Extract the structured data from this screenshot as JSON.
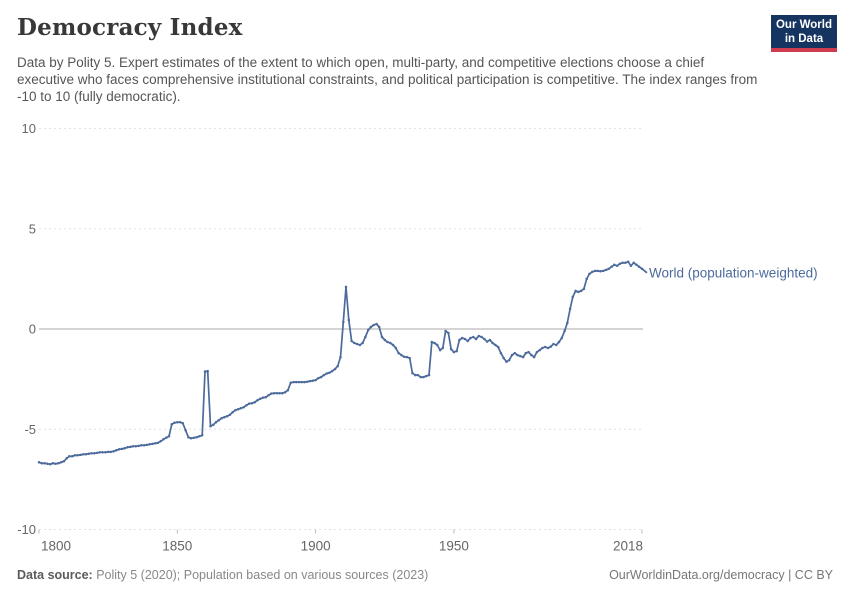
{
  "header": {
    "title": "Democracy Index",
    "subtitle_lines": [
      "Data by Polity 5. Expert estimates of the extent to which open, multi-party, and competitive elections choose a",
      "chief executive who faces comprehensive institutional constraints, and political participation is competitive. The",
      "index ranges from -10 to 10 (fully democratic)."
    ],
    "logo": {
      "line1": "Our World",
      "line2": "in Data"
    }
  },
  "footer": {
    "datasource_label": "Data source:",
    "datasource_text": " Polity 5 (2020); Population based on various sources (2023)",
    "credit": "OurWorldinData.org/democracy | CC BY"
  },
  "colors": {
    "series": "#4C6A9C",
    "grid": "#e2e2e2",
    "zero_line": "#a8a8a8",
    "axis_text": "#666666",
    "logo_bg": "#15345F",
    "logo_red": "#D13B4F"
  },
  "chart_data": {
    "type": "line",
    "title": "Democracy Index",
    "xlabel": "",
    "ylabel": "",
    "xlim": [
      1800,
      2018
    ],
    "ylim": [
      -10,
      10
    ],
    "x_ticks": [
      1800,
      1850,
      1900,
      1950,
      2018
    ],
    "y_ticks": [
      10,
      5,
      0,
      -5,
      -10
    ],
    "grid": "horizontal dashed gridlines, solid line at 0",
    "legend_position": "label at end of line",
    "series": [
      {
        "name": "World (population-weighted)",
        "color": "#4C6A9C",
        "x": {
          "from": 1800,
          "to": 2018,
          "step": 1
        },
        "values": [
          -6.65,
          -6.7,
          -6.7,
          -6.72,
          -6.75,
          -6.7,
          -6.72,
          -6.7,
          -6.65,
          -6.6,
          -6.45,
          -6.35,
          -6.35,
          -6.3,
          -6.3,
          -6.28,
          -6.25,
          -6.25,
          -6.22,
          -6.2,
          -6.2,
          -6.18,
          -6.15,
          -6.15,
          -6.15,
          -6.13,
          -6.13,
          -6.1,
          -6.05,
          -6.0,
          -5.98,
          -5.95,
          -5.9,
          -5.88,
          -5.85,
          -5.85,
          -5.83,
          -5.8,
          -5.8,
          -5.78,
          -5.75,
          -5.73,
          -5.7,
          -5.68,
          -5.6,
          -5.5,
          -5.42,
          -5.35,
          -4.75,
          -4.68,
          -4.65,
          -4.65,
          -4.7,
          -5.05,
          -5.4,
          -5.45,
          -5.42,
          -5.4,
          -5.35,
          -5.3,
          -2.12,
          -2.1,
          -4.85,
          -4.78,
          -4.65,
          -4.55,
          -4.45,
          -4.4,
          -4.35,
          -4.28,
          -4.15,
          -4.05,
          -4.0,
          -3.95,
          -3.9,
          -3.8,
          -3.72,
          -3.7,
          -3.65,
          -3.55,
          -3.48,
          -3.42,
          -3.4,
          -3.3,
          -3.22,
          -3.2,
          -3.2,
          -3.2,
          -3.2,
          -3.15,
          -3.05,
          -2.68,
          -2.65,
          -2.65,
          -2.65,
          -2.65,
          -2.65,
          -2.63,
          -2.6,
          -2.58,
          -2.55,
          -2.45,
          -2.4,
          -2.3,
          -2.22,
          -2.18,
          -2.1,
          -2.0,
          -1.85,
          -1.4,
          0.35,
          2.1,
          0.45,
          -0.6,
          -0.7,
          -0.75,
          -0.8,
          -0.7,
          -0.4,
          -0.05,
          0.1,
          0.2,
          0.25,
          0.1,
          -0.4,
          -0.55,
          -0.65,
          -0.7,
          -0.8,
          -0.95,
          -1.2,
          -1.3,
          -1.38,
          -1.4,
          -1.45,
          -2.2,
          -2.3,
          -2.3,
          -2.4,
          -2.4,
          -2.35,
          -2.3,
          -0.65,
          -0.7,
          -0.8,
          -1.05,
          -0.95,
          -0.1,
          -0.2,
          -1.0,
          -1.15,
          -1.1,
          -0.55,
          -0.45,
          -0.5,
          -0.6,
          -0.45,
          -0.4,
          -0.5,
          -0.35,
          -0.4,
          -0.5,
          -0.63,
          -0.55,
          -0.7,
          -0.8,
          -0.9,
          -1.2,
          -1.45,
          -1.63,
          -1.55,
          -1.3,
          -1.2,
          -1.3,
          -1.35,
          -1.4,
          -1.2,
          -1.15,
          -1.3,
          -1.4,
          -1.15,
          -1.05,
          -0.95,
          -0.9,
          -0.95,
          -0.88,
          -0.75,
          -0.8,
          -0.65,
          -0.45,
          -0.1,
          0.3,
          1.0,
          1.6,
          1.9,
          1.85,
          1.9,
          2.0,
          2.5,
          2.75,
          2.85,
          2.9,
          2.9,
          2.88,
          2.9,
          2.95,
          3.0,
          3.1,
          3.2,
          3.15,
          3.25,
          3.3,
          3.3,
          3.35,
          3.15,
          3.3,
          3.2,
          3.1,
          3.0
        ]
      }
    ]
  }
}
